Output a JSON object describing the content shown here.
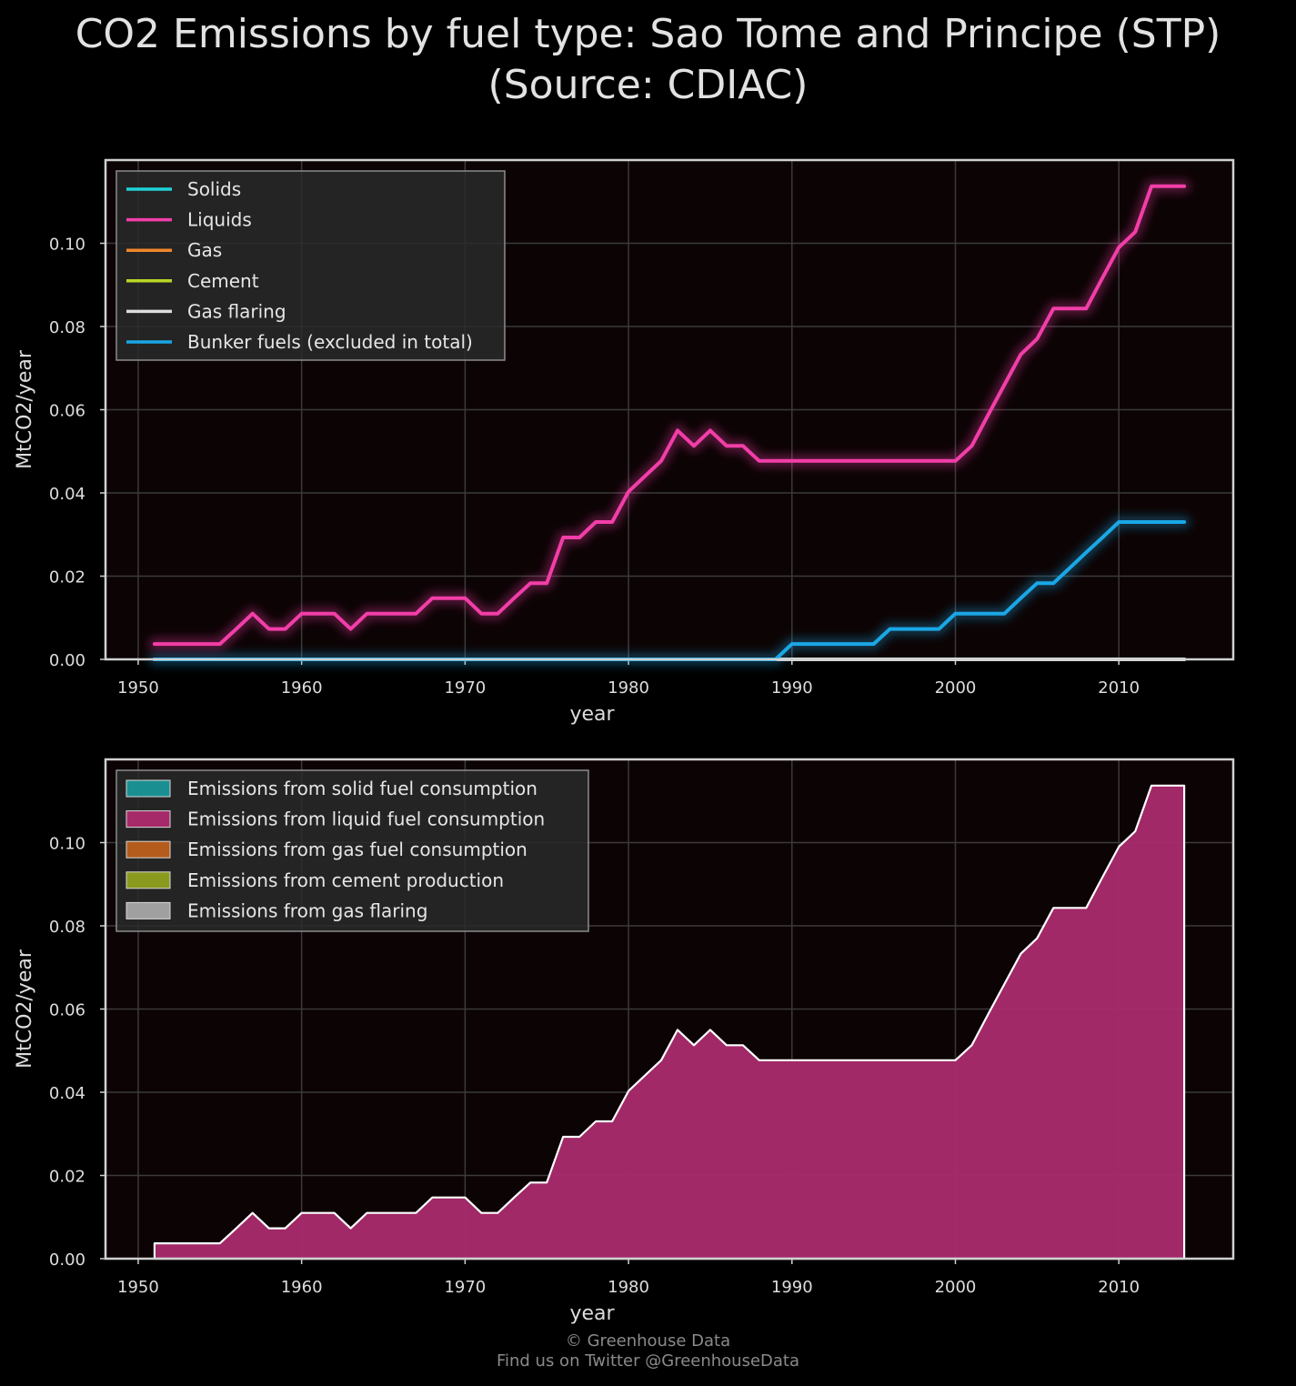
{
  "title": {
    "line1": "CO2 Emissions by fuel type: Sao Tome and Principe (STP)",
    "line2": "(Source: CDIAC)"
  },
  "footer": {
    "line1": "© Greenhouse Data",
    "line2": "Find us on Twitter @GreenhouseData"
  },
  "colors": {
    "background": "#000000",
    "plot_background": "#0c0304",
    "grid": "#3a3a3a",
    "frame": "#d0d0d0",
    "solids": "#1fd3d8",
    "liquids": "#f23ea8",
    "gas": "#f0862a",
    "cement": "#b7d626",
    "gas_flaring": "#dddddd",
    "bunker": "#1aa7e6",
    "area_solids": "#1a8f92",
    "area_liquids": "#a62a6a",
    "area_gas": "#b35c1c",
    "area_cement": "#8a9a1f",
    "area_flaring": "#a0a0a0"
  },
  "chart_data": [
    {
      "type": "line",
      "xlabel": "year",
      "ylabel": "MtCO2/year",
      "xlim": [
        1948,
        2017
      ],
      "ylim": [
        0,
        0.12
      ],
      "xticks": [
        1950,
        1960,
        1970,
        1980,
        1990,
        2000,
        2010
      ],
      "yticks": [
        "0.00",
        "0.02",
        "0.04",
        "0.06",
        "0.08",
        "0.10"
      ],
      "grid": true,
      "legend_position": "top-left",
      "x": [
        1951,
        1952,
        1953,
        1954,
        1955,
        1956,
        1957,
        1958,
        1959,
        1960,
        1961,
        1962,
        1963,
        1964,
        1965,
        1966,
        1967,
        1968,
        1969,
        1970,
        1971,
        1972,
        1973,
        1974,
        1975,
        1976,
        1977,
        1978,
        1979,
        1980,
        1981,
        1982,
        1983,
        1984,
        1985,
        1986,
        1987,
        1988,
        1989,
        1990,
        1991,
        1992,
        1993,
        1994,
        1995,
        1996,
        1997,
        1998,
        1999,
        2000,
        2001,
        2002,
        2003,
        2004,
        2005,
        2006,
        2007,
        2008,
        2009,
        2010,
        2011,
        2012,
        2013,
        2014
      ],
      "series": [
        {
          "name": "Solids",
          "key": "solids",
          "values": [
            0,
            0,
            0,
            0,
            0,
            0,
            0,
            0,
            0,
            0,
            0,
            0,
            0,
            0,
            0,
            0,
            0,
            0,
            0,
            0,
            0,
            0,
            0,
            0,
            0,
            0,
            0,
            0,
            0,
            0,
            0,
            0,
            0,
            0,
            0,
            0,
            0,
            0,
            0,
            0,
            0,
            0,
            0,
            0,
            0,
            0,
            0,
            0,
            0,
            0,
            0,
            0,
            0,
            0,
            0,
            0,
            0,
            0,
            0,
            0,
            0,
            0,
            0,
            0
          ]
        },
        {
          "name": "Liquids",
          "key": "liquids",
          "values": [
            0.0037,
            0.0037,
            0.0037,
            0.0037,
            0.0037,
            0.0073,
            0.011,
            0.0073,
            0.0073,
            0.011,
            0.011,
            0.011,
            0.0073,
            0.011,
            0.011,
            0.011,
            0.011,
            0.0147,
            0.0147,
            0.0147,
            0.011,
            0.011,
            0.0147,
            0.0183,
            0.0183,
            0.0293,
            0.0293,
            0.033,
            0.033,
            0.0403,
            0.044,
            0.0477,
            0.055,
            0.0513,
            0.055,
            0.0513,
            0.0513,
            0.0477,
            0.0477,
            0.0477,
            0.0477,
            0.0477,
            0.0477,
            0.0477,
            0.0477,
            0.0477,
            0.0477,
            0.0477,
            0.0477,
            0.0477,
            0.0513,
            0.0587,
            0.066,
            0.0733,
            0.077,
            0.0843,
            0.0843,
            0.0843,
            0.0917,
            0.099,
            0.1027,
            0.1137,
            0.1137,
            0.1137
          ]
        },
        {
          "name": "Gas",
          "key": "gas",
          "values": [
            0,
            0,
            0,
            0,
            0,
            0,
            0,
            0,
            0,
            0,
            0,
            0,
            0,
            0,
            0,
            0,
            0,
            0,
            0,
            0,
            0,
            0,
            0,
            0,
            0,
            0,
            0,
            0,
            0,
            0,
            0,
            0,
            0,
            0,
            0,
            0,
            0,
            0,
            0,
            0,
            0,
            0,
            0,
            0,
            0,
            0,
            0,
            0,
            0,
            0,
            0,
            0,
            0,
            0,
            0,
            0,
            0,
            0,
            0,
            0,
            0,
            0,
            0,
            0
          ]
        },
        {
          "name": "Cement",
          "key": "cement",
          "values": [
            0,
            0,
            0,
            0,
            0,
            0,
            0,
            0,
            0,
            0,
            0,
            0,
            0,
            0,
            0,
            0,
            0,
            0,
            0,
            0,
            0,
            0,
            0,
            0,
            0,
            0,
            0,
            0,
            0,
            0,
            0,
            0,
            0,
            0,
            0,
            0,
            0,
            0,
            0,
            0,
            0,
            0,
            0,
            0,
            0,
            0,
            0,
            0,
            0,
            0,
            0,
            0,
            0,
            0,
            0,
            0,
            0,
            0,
            0,
            0,
            0,
            0,
            0,
            0
          ]
        },
        {
          "name": "Gas flaring",
          "key": "gas_flaring",
          "values": [
            0,
            0,
            0,
            0,
            0,
            0,
            0,
            0,
            0,
            0,
            0,
            0,
            0,
            0,
            0,
            0,
            0,
            0,
            0,
            0,
            0,
            0,
            0,
            0,
            0,
            0,
            0,
            0,
            0,
            0,
            0,
            0,
            0,
            0,
            0,
            0,
            0,
            0,
            0,
            0,
            0,
            0,
            0,
            0,
            0,
            0,
            0,
            0,
            0,
            0,
            0,
            0,
            0,
            0,
            0,
            0,
            0,
            0,
            0,
            0,
            0,
            0,
            0,
            0
          ]
        },
        {
          "name": "Bunker fuels (excluded in total)",
          "key": "bunker",
          "values": [
            0,
            0,
            0,
            0,
            0,
            0,
            0,
            0,
            0,
            0,
            0,
            0,
            0,
            0,
            0,
            0,
            0,
            0,
            0,
            0,
            0,
            0,
            0,
            0,
            0,
            0,
            0,
            0,
            0,
            0,
            0,
            0,
            0,
            0,
            0,
            0,
            0,
            0,
            0,
            0.0037,
            0.0037,
            0.0037,
            0.0037,
            0.0037,
            0.0037,
            0.0073,
            0.0073,
            0.0073,
            0.0073,
            0.011,
            0.011,
            0.011,
            0.011,
            0.0147,
            0.0183,
            0.0183,
            0.022,
            0.0257,
            0.0293,
            0.033,
            0.033,
            0.033,
            0.033,
            0.033
          ]
        }
      ]
    },
    {
      "type": "area",
      "stacked": true,
      "xlabel": "year",
      "ylabel": "MtCO2/year",
      "xlim": [
        1948,
        2017
      ],
      "ylim": [
        0,
        0.12
      ],
      "xticks": [
        1950,
        1960,
        1970,
        1980,
        1990,
        2000,
        2010
      ],
      "yticks": [
        "0.00",
        "0.02",
        "0.04",
        "0.06",
        "0.08",
        "0.10"
      ],
      "grid": true,
      "legend_position": "top-left",
      "series": [
        {
          "name": "Emissions from solid fuel consumption",
          "key": "area_solids"
        },
        {
          "name": "Emissions from liquid fuel consumption",
          "key": "area_liquids"
        },
        {
          "name": "Emissions from gas fuel consumption",
          "key": "area_gas"
        },
        {
          "name": "Emissions from cement production",
          "key": "area_cement"
        },
        {
          "name": "Emissions from gas flaring",
          "key": "area_flaring"
        }
      ]
    }
  ]
}
